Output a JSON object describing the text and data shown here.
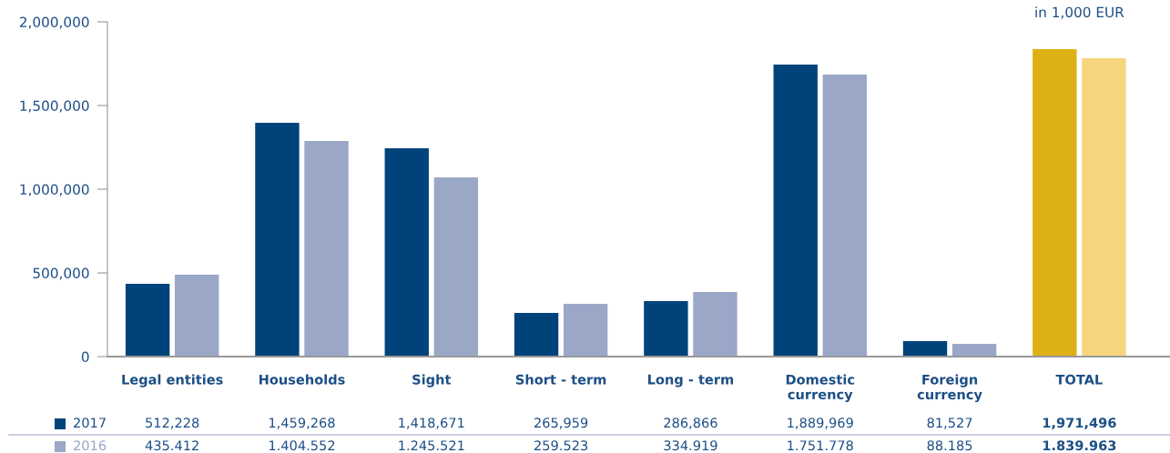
{
  "chart_data": {
    "type": "bar",
    "annotations": [
      "in 1,000 EUR",
      "512,228",
      "1,459,268",
      "1,418,671",
      "265,959",
      "286,866",
      "1,889,969",
      "81,527",
      "1,971,496",
      "435.412",
      "1.404.552",
      "1.245.521",
      "259.523",
      "334.919",
      "1.751.778",
      "88.185",
      "1.839.963"
    ],
    "categories": [
      "Legal entities",
      "Households",
      "Sight",
      "Short - term",
      "Long - term",
      "Domestic\ncurrency",
      "Foreign\ncurrency",
      "TOTAL"
    ],
    "series": [
      {
        "name": "2017",
        "color": "#00437a",
        "colors": [
          "#00437a",
          "#00437a",
          "#00437a",
          "#00437a",
          "#00437a",
          "#00437a",
          "#00437a",
          "#ddb116"
        ],
        "values": [
          435000,
          1397000,
          1245000,
          261000,
          332000,
          1745000,
          92000,
          1837000
        ]
      },
      {
        "name": "2016",
        "color": "#9aa7c7",
        "colors": [
          "#9aa7c7",
          "#9aa7c7",
          "#9aa7c7",
          "#9aa7c7",
          "#9aa7c7",
          "#9aa7c7",
          "#9aa7c7",
          "#f6d57e"
        ],
        "values": [
          489000,
          1288000,
          1071000,
          315000,
          386000,
          1685000,
          76000,
          1783000
        ]
      }
    ],
    "ylim": [
      0,
      2000000
    ],
    "yticks": [
      0,
      {
        "value": 500000,
        "label": "500,000"
      },
      {
        "value": 1000000,
        "label": "1,000,000"
      },
      {
        "value": 1500000,
        "label": "1,500,000"
      },
      {
        "value": 2000000,
        "label": "2,000,000"
      }
    ],
    "grid": false,
    "legend": "bottom"
  }
}
